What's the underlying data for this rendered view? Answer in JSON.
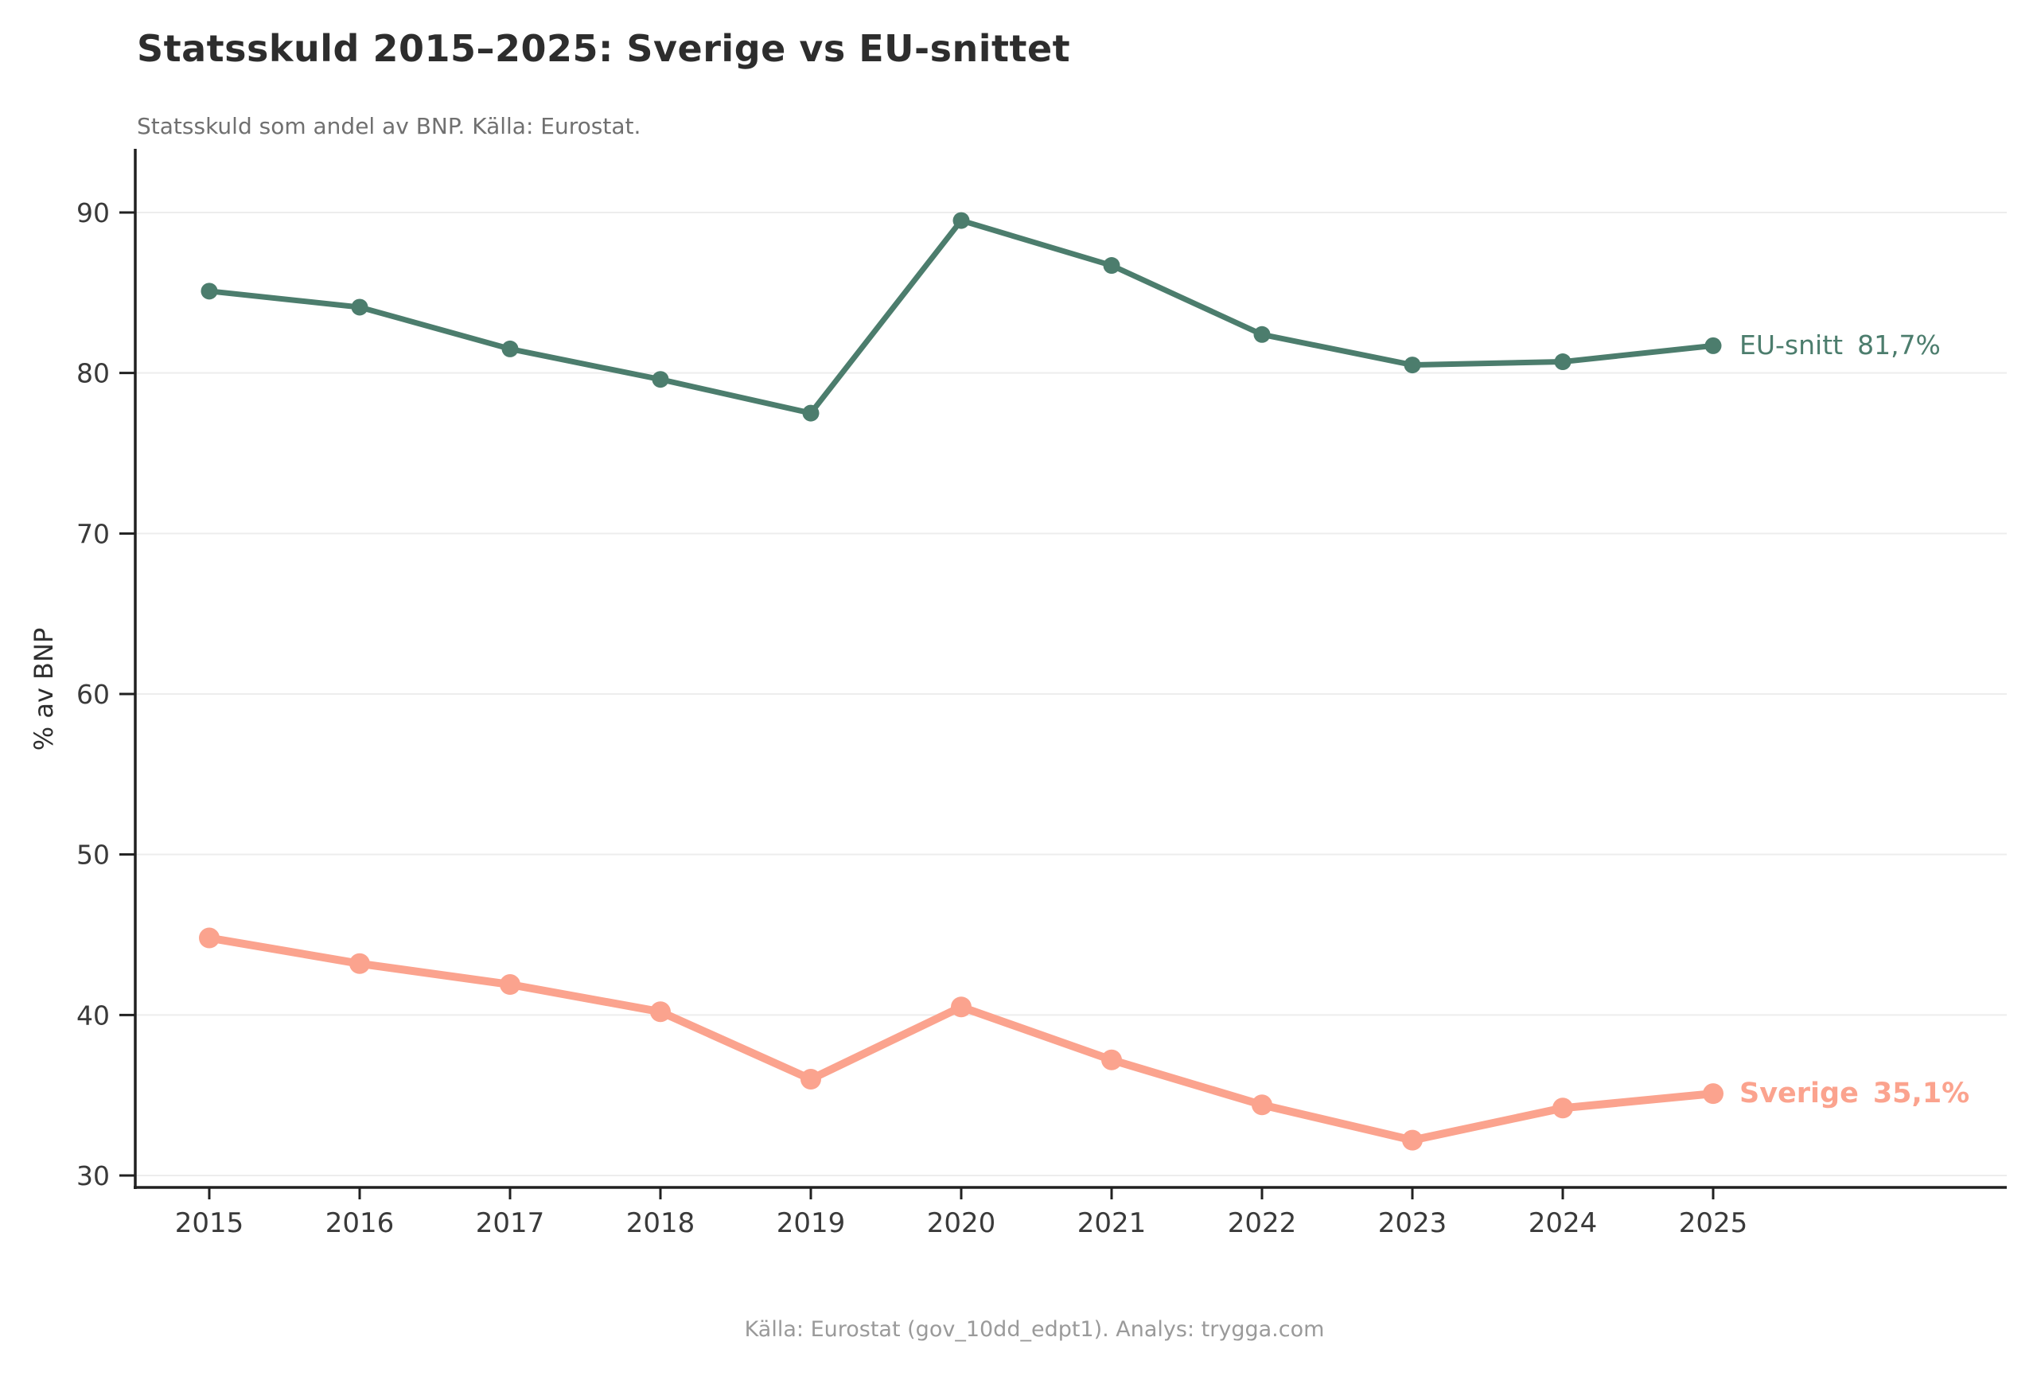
{
  "header": {
    "title": "Statsskuld 2015–2025: Sverige vs EU-snittet",
    "subtitle": "Statsskuld som andel av BNP. Källa: Eurostat."
  },
  "footer": "Källa: Eurostat (gov_10dd_edpt1). Analys: trygga.com",
  "colors": {
    "eu_line": "#4c7d6d",
    "sverige_line": "#fba38e",
    "grid": "#ededed",
    "axis": "#212121",
    "tick_label": "#3a3a3a",
    "title": "#2d2d2d",
    "subtitle": "#707070",
    "footer": "#9a9a9a",
    "background": "#ffffff"
  },
  "chart_data": {
    "type": "line",
    "title": "Statsskuld 2015–2025: Sverige vs EU-snittet",
    "subtitle": "Statsskuld som andel av BNP. Källa: Eurostat.",
    "xlabel": "",
    "ylabel": "% av BNP",
    "x": [
      2015,
      2016,
      2017,
      2018,
      2019,
      2020,
      2021,
      2022,
      2023,
      2024,
      2025
    ],
    "yticks": [
      30,
      40,
      50,
      60,
      70,
      80,
      90
    ],
    "ylim": [
      29.3,
      93.9
    ],
    "grid": "horizontal-major",
    "legend_position": "end-of-line-labels",
    "series": [
      {
        "name": "EU-snitt",
        "color": "#4c7d6d",
        "marker": "circle",
        "values": [
          85.1,
          84.1,
          81.5,
          79.6,
          77.5,
          89.5,
          86.7,
          82.4,
          80.5,
          80.7,
          81.7
        ],
        "end_label": {
          "text": "EU-snitt",
          "value": "81,7%"
        }
      },
      {
        "name": "Sverige",
        "color": "#fba38e",
        "marker": "circle",
        "values": [
          44.8,
          43.2,
          41.9,
          40.2,
          36.0,
          40.5,
          37.2,
          34.4,
          32.2,
          34.2,
          35.1
        ],
        "end_label": {
          "text": "Sverige",
          "value": "35,1%"
        }
      }
    ]
  }
}
